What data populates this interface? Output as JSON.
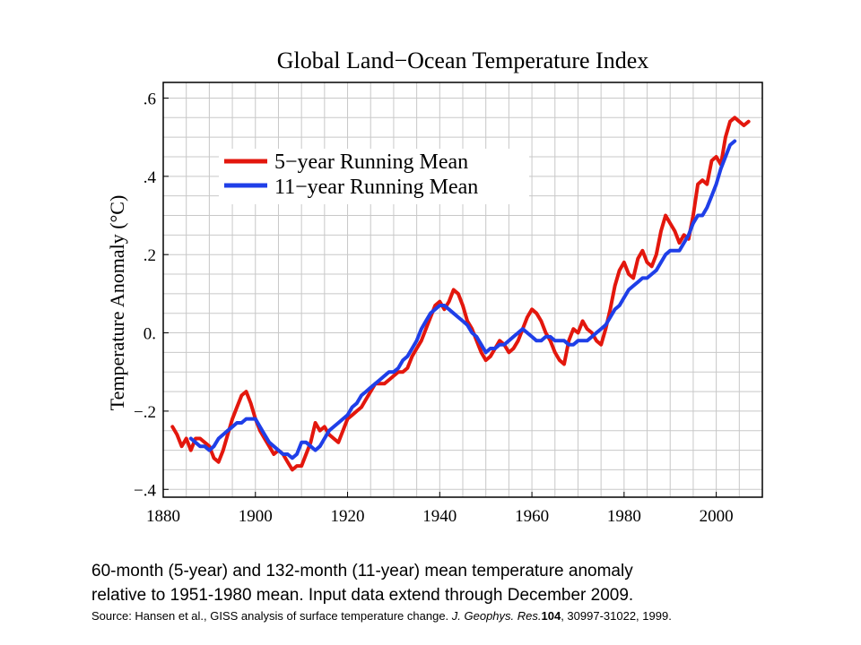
{
  "chart_data": {
    "type": "line",
    "title": "Global Land−Ocean Temperature Index",
    "xlabel": "",
    "ylabel": "Temperature Anomaly (°C)",
    "xlim": [
      1880,
      2010
    ],
    "ylim": [
      -0.42,
      0.64
    ],
    "xticks": [
      1880,
      1900,
      1920,
      1940,
      1960,
      1980,
      2000
    ],
    "xtick_labels": [
      "1880",
      "1900",
      "1920",
      "1940",
      "1960",
      "1980",
      "2000"
    ],
    "yticks": [
      -0.4,
      -0.2,
      0.0,
      0.2,
      0.4,
      0.6
    ],
    "ytick_labels": [
      "−.4",
      "−.2",
      "0.",
      ".2",
      ".4",
      ".6"
    ],
    "grid": true,
    "legend_position": "top-left",
    "series": [
      {
        "name": "5−year Running Mean",
        "color": "#e3170d",
        "x": [
          1882,
          1883,
          1884,
          1885,
          1886,
          1887,
          1888,
          1889,
          1890,
          1891,
          1892,
          1893,
          1894,
          1895,
          1896,
          1897,
          1898,
          1899,
          1900,
          1901,
          1902,
          1903,
          1904,
          1905,
          1906,
          1907,
          1908,
          1909,
          1910,
          1911,
          1912,
          1913,
          1914,
          1915,
          1916,
          1917,
          1918,
          1919,
          1920,
          1921,
          1922,
          1923,
          1924,
          1925,
          1926,
          1927,
          1928,
          1929,
          1930,
          1931,
          1932,
          1933,
          1934,
          1935,
          1936,
          1937,
          1938,
          1939,
          1940,
          1941,
          1942,
          1943,
          1944,
          1945,
          1946,
          1947,
          1948,
          1949,
          1950,
          1951,
          1952,
          1953,
          1954,
          1955,
          1956,
          1957,
          1958,
          1959,
          1960,
          1961,
          1962,
          1963,
          1964,
          1965,
          1966,
          1967,
          1968,
          1969,
          1970,
          1971,
          1972,
          1973,
          1974,
          1975,
          1976,
          1977,
          1978,
          1979,
          1980,
          1981,
          1982,
          1983,
          1984,
          1985,
          1986,
          1987,
          1988,
          1989,
          1990,
          1991,
          1992,
          1993,
          1994,
          1995,
          1996,
          1997,
          1998,
          1999,
          2000,
          2001,
          2002,
          2003,
          2004,
          2005,
          2006,
          2007
        ],
        "y": [
          -0.24,
          -0.26,
          -0.29,
          -0.27,
          -0.3,
          -0.27,
          -0.27,
          -0.28,
          -0.29,
          -0.32,
          -0.33,
          -0.3,
          -0.26,
          -0.22,
          -0.19,
          -0.16,
          -0.15,
          -0.18,
          -0.22,
          -0.25,
          -0.27,
          -0.29,
          -0.31,
          -0.3,
          -0.31,
          -0.33,
          -0.35,
          -0.34,
          -0.34,
          -0.31,
          -0.28,
          -0.23,
          -0.25,
          -0.24,
          -0.26,
          -0.27,
          -0.28,
          -0.25,
          -0.22,
          -0.21,
          -0.2,
          -0.19,
          -0.17,
          -0.15,
          -0.13,
          -0.13,
          -0.13,
          -0.12,
          -0.11,
          -0.1,
          -0.1,
          -0.09,
          -0.06,
          -0.04,
          -0.02,
          0.01,
          0.04,
          0.07,
          0.08,
          0.06,
          0.08,
          0.11,
          0.1,
          0.07,
          0.03,
          0.01,
          -0.02,
          -0.05,
          -0.07,
          -0.06,
          -0.04,
          -0.02,
          -0.03,
          -0.05,
          -0.04,
          -0.02,
          0.01,
          0.04,
          0.06,
          0.05,
          0.03,
          0.0,
          -0.02,
          -0.05,
          -0.07,
          -0.08,
          -0.02,
          0.01,
          0.0,
          0.03,
          0.01,
          0.0,
          -0.02,
          -0.03,
          0.01,
          0.06,
          0.12,
          0.16,
          0.18,
          0.15,
          0.14,
          0.19,
          0.21,
          0.18,
          0.17,
          0.2,
          0.26,
          0.3,
          0.28,
          0.26,
          0.23,
          0.25,
          0.24,
          0.3,
          0.38,
          0.39,
          0.38,
          0.44,
          0.45,
          0.43,
          0.5,
          0.54,
          0.55,
          0.54,
          0.53,
          0.54
        ]
      },
      {
        "name": "11−year Running Mean",
        "color": "#1f3fe8",
        "x": [
          1886,
          1887,
          1888,
          1889,
          1890,
          1891,
          1892,
          1893,
          1894,
          1895,
          1896,
          1897,
          1898,
          1899,
          1900,
          1901,
          1902,
          1903,
          1904,
          1905,
          1906,
          1907,
          1908,
          1909,
          1910,
          1911,
          1912,
          1913,
          1914,
          1915,
          1916,
          1917,
          1918,
          1919,
          1920,
          1921,
          1922,
          1923,
          1924,
          1925,
          1926,
          1927,
          1928,
          1929,
          1930,
          1931,
          1932,
          1933,
          1934,
          1935,
          1936,
          1937,
          1938,
          1939,
          1940,
          1941,
          1942,
          1943,
          1944,
          1945,
          1946,
          1947,
          1948,
          1949,
          1950,
          1951,
          1952,
          1953,
          1954,
          1955,
          1956,
          1957,
          1958,
          1959,
          1960,
          1961,
          1962,
          1963,
          1964,
          1965,
          1966,
          1967,
          1968,
          1969,
          1970,
          1971,
          1972,
          1973,
          1974,
          1975,
          1976,
          1977,
          1978,
          1979,
          1980,
          1981,
          1982,
          1983,
          1984,
          1985,
          1986,
          1987,
          1988,
          1989,
          1990,
          1991,
          1992,
          1993,
          1994,
          1995,
          1996,
          1997,
          1998,
          1999,
          2000,
          2001,
          2002,
          2003,
          2004
        ],
        "y": [
          -0.27,
          -0.28,
          -0.29,
          -0.29,
          -0.3,
          -0.29,
          -0.27,
          -0.26,
          -0.25,
          -0.24,
          -0.23,
          -0.23,
          -0.22,
          -0.22,
          -0.22,
          -0.24,
          -0.26,
          -0.28,
          -0.29,
          -0.3,
          -0.31,
          -0.31,
          -0.32,
          -0.31,
          -0.28,
          -0.28,
          -0.29,
          -0.3,
          -0.29,
          -0.27,
          -0.25,
          -0.24,
          -0.23,
          -0.22,
          -0.21,
          -0.19,
          -0.18,
          -0.16,
          -0.15,
          -0.14,
          -0.13,
          -0.12,
          -0.11,
          -0.1,
          -0.1,
          -0.09,
          -0.07,
          -0.06,
          -0.04,
          -0.02,
          0.01,
          0.03,
          0.05,
          0.06,
          0.07,
          0.07,
          0.06,
          0.05,
          0.04,
          0.03,
          0.02,
          0.0,
          -0.01,
          -0.03,
          -0.05,
          -0.04,
          -0.04,
          -0.03,
          -0.03,
          -0.02,
          -0.01,
          0.0,
          0.01,
          0.0,
          -0.01,
          -0.02,
          -0.02,
          -0.01,
          -0.01,
          -0.02,
          -0.02,
          -0.02,
          -0.03,
          -0.03,
          -0.02,
          -0.02,
          -0.02,
          -0.01,
          0.0,
          0.01,
          0.02,
          0.04,
          0.06,
          0.07,
          0.09,
          0.11,
          0.12,
          0.13,
          0.14,
          0.14,
          0.15,
          0.16,
          0.18,
          0.2,
          0.21,
          0.21,
          0.21,
          0.23,
          0.25,
          0.28,
          0.3,
          0.3,
          0.32,
          0.35,
          0.38,
          0.42,
          0.45,
          0.48,
          0.49
        ]
      }
    ]
  },
  "caption": {
    "line1": "60-month (5-year) and 132-month (11-year) mean temperature anomaly",
    "line2": "relative to 1951-1980 mean.  Input data extend through December 2009.",
    "source_prefix": "Source: Hansen et al., GISS analysis of surface temperature change. ",
    "source_journal": "J. Geophys. Res.",
    "source_volume": "104",
    "source_suffix": ", 30997-31022, 1999."
  }
}
